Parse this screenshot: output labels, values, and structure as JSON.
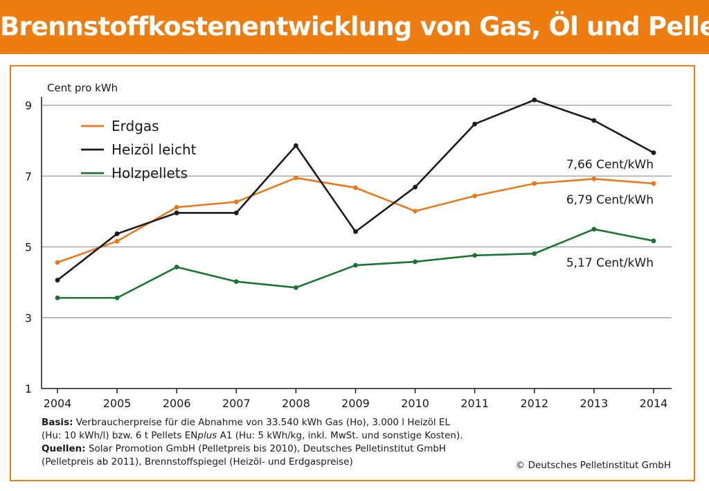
{
  "title": "Brennstoffkostenentwicklung von Gas, Öl und Pellets",
  "chart_data": {
    "type": "line",
    "title": "Brennstoffkostenentwicklung von Gas, Öl und Pellets",
    "ylabel": "Cent pro kWh",
    "xlabel": "",
    "x": [
      "2004",
      "2005",
      "2006",
      "2007",
      "2008",
      "2009",
      "2010",
      "2011",
      "2012",
      "2013",
      "2014"
    ],
    "ylim": [
      1,
      9
    ],
    "yticks": [
      1,
      3,
      5,
      7,
      9
    ],
    "grid": true,
    "legend_position": "top-left",
    "series": [
      {
        "name": "Erdgas",
        "color": "#e87a1c",
        "values": [
          4.56,
          5.16,
          6.12,
          6.27,
          6.95,
          6.67,
          6.01,
          6.44,
          6.79,
          6.92,
          6.79
        ]
      },
      {
        "name": "Heizöl leicht",
        "color": "#1a1a1a",
        "values": [
          4.06,
          5.37,
          5.96,
          5.96,
          7.86,
          5.43,
          6.69,
          8.47,
          9.15,
          8.57,
          7.66
        ]
      },
      {
        "name": "Holzpellets",
        "color": "#1a7332",
        "values": [
          3.56,
          3.56,
          4.43,
          4.02,
          3.85,
          4.48,
          4.58,
          4.76,
          4.81,
          5.5,
          5.17
        ]
      }
    ],
    "annotations": [
      {
        "text": "7,66 Cent/kWh",
        "series": "Heizöl leicht"
      },
      {
        "text": "6,79 Cent/kWh",
        "series": "Erdgas"
      },
      {
        "text": "5,17 Cent/kWh",
        "series": "Holzpellets"
      }
    ]
  },
  "notes": {
    "basis_label": "Basis:",
    "basis_line1": "Verbraucherpreise für die Abnahme von 33.540 kWh Gas (Ho), 3.000 l Heizöl EL",
    "basis_line2_a": "(Hu: 10 kWh/l) bzw. 6 t Pellets EN",
    "basis_line2_plus": "plus",
    "basis_line2_b": " A1 (Hu: 5 kWh/kg, inkl. MwSt. und sonstige Kosten).",
    "sources_label": "Quellen:",
    "sources_line1": "Solar Promotion GmbH (Pelletpreis bis 2010), Deutsches Pelletinstitut GmbH",
    "sources_line2": "(Pelletpreis ab 2011), Brennstoffspiegel (Heizöl- und Erdgaspreise)"
  },
  "copyright": "© Deutsches Pelletinstitut GmbH"
}
